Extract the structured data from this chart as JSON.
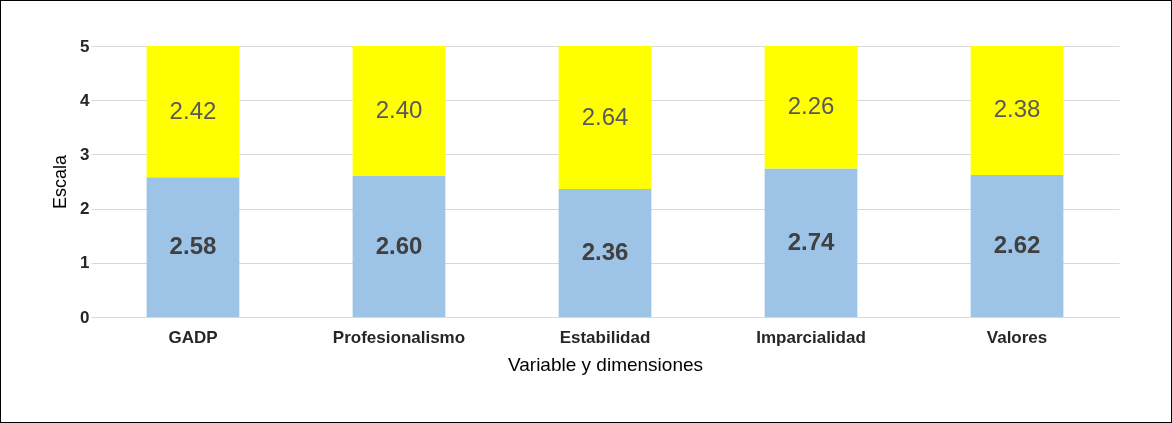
{
  "chart_data": {
    "type": "bar",
    "stacked": true,
    "xlabel": "Variable y dimensiones",
    "ylabel": "Escala",
    "categories": [
      "GADP",
      "Profesionalismo",
      "Estabilidad",
      "Imparcialidad",
      "Valores"
    ],
    "series": [
      {
        "color": "#9dc3e6",
        "values": [
          2.58,
          2.6,
          2.36,
          2.74,
          2.62
        ],
        "value_labels": [
          "2.58",
          "2.60",
          "2.36",
          "2.74",
          "2.62"
        ]
      },
      {
        "color": "#ffff00",
        "values": [
          2.42,
          2.4,
          2.64,
          2.26,
          2.38
        ],
        "value_labels": [
          "2.42",
          "2.40",
          "2.64",
          "2.26",
          "2.38"
        ]
      }
    ],
    "ylim": [
      0,
      5
    ],
    "yticks": [
      0,
      1,
      2,
      3,
      4,
      5
    ],
    "grid": "y"
  }
}
